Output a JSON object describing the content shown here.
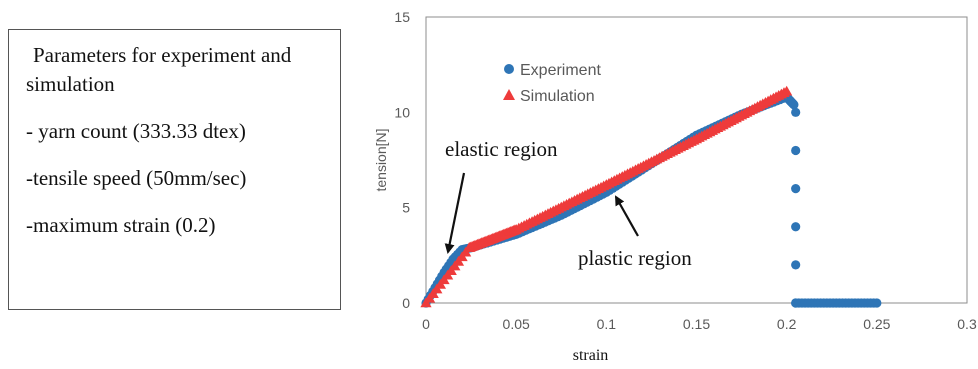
{
  "params": {
    "title_line1": "Parameters for experiment and",
    "title_line2": "simulation",
    "items": [
      "- yarn count (333.33 dtex)",
      "-tensile speed (50mm/sec)",
      "-maximum strain (0.2)"
    ]
  },
  "chart_data": {
    "type": "scatter",
    "title": "",
    "xlabel": "strain",
    "ylabel": "tension[N]",
    "xlim": [
      0,
      0.3
    ],
    "ylim": [
      0,
      15
    ],
    "xticks": [
      0,
      0.05,
      0.1,
      0.15,
      0.2,
      0.25,
      0.3
    ],
    "xtick_labels": [
      "0",
      "0.05",
      "0.1",
      "0.15",
      "0.2",
      "0.25",
      "0.3"
    ],
    "yticks": [
      0,
      5,
      10,
      15
    ],
    "ytick_labels": [
      "0",
      "5",
      "10",
      "15"
    ],
    "grid": false,
    "legend_position": "upper-left",
    "series": [
      {
        "name": "Experiment",
        "marker": "circle",
        "color": "#2e75b6",
        "segments": [
          {
            "x": [
              0,
              0.005,
              0.01,
              0.015,
              0.02,
              0.025
            ],
            "y": [
              0,
              0.8,
              1.6,
              2.3,
              2.8,
              2.9
            ]
          },
          {
            "x": [
              0.025,
              0.05,
              0.075,
              0.1,
              0.125,
              0.15,
              0.175,
              0.2,
              0.204
            ],
            "y": [
              2.9,
              3.6,
              4.6,
              5.8,
              7.3,
              8.8,
              9.9,
              10.8,
              10.4
            ]
          }
        ],
        "x": [
          0.205,
          0.205,
          0.205,
          0.205,
          0.205,
          0.205
        ],
        "y": [
          10,
          8,
          6,
          4,
          2,
          0
        ],
        "tail_x": [
          0.205,
          0.25
        ],
        "tail_y": [
          0,
          0
        ]
      },
      {
        "name": "Simulation",
        "marker": "triangle",
        "color": "#ee3b3b",
        "segments": [
          {
            "x": [
              0,
              0.024
            ],
            "y": [
              0,
              2.9
            ]
          },
          {
            "x": [
              0.024,
              0.05,
              0.1,
              0.15,
              0.2
            ],
            "y": [
              2.9,
              3.85,
              6.2,
              8.6,
              11.1
            ]
          }
        ]
      }
    ],
    "annotations": [
      {
        "text": "elastic region",
        "x": 0.01,
        "y": 2.7
      },
      {
        "text": "plastic region",
        "x": 0.11,
        "y": 5.7
      }
    ]
  }
}
